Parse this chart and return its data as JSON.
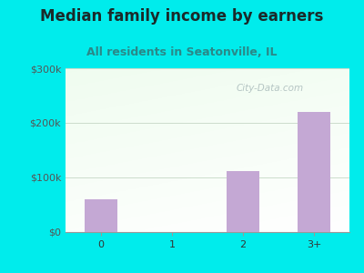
{
  "title": "Median family income by earners",
  "subtitle": "All residents in Seatonville, IL",
  "categories": [
    "0",
    "1",
    "2",
    "3+"
  ],
  "values": [
    60000,
    0,
    112000,
    220000
  ],
  "bar_color": "#c4a8d4",
  "outer_bg": "#00ecec",
  "plot_bg_topleft": "#d8f0e0",
  "plot_bg_topright": "#f8fffc",
  "plot_bg_bottom": "#e8f8ec",
  "title_color": "#1a2a2a",
  "subtitle_color": "#2a8888",
  "ytick_color": "#555555",
  "xtick_color": "#333333",
  "ylim": [
    0,
    300000
  ],
  "yticks": [
    0,
    100000,
    200000,
    300000
  ],
  "ytick_labels": [
    "$0",
    "$100k",
    "$200k",
    "$300k"
  ],
  "title_fontsize": 12,
  "subtitle_fontsize": 9,
  "tick_fontsize": 8,
  "watermark": "City-Data.com",
  "grid_color": "#ccddcc",
  "bar_width": 0.45
}
